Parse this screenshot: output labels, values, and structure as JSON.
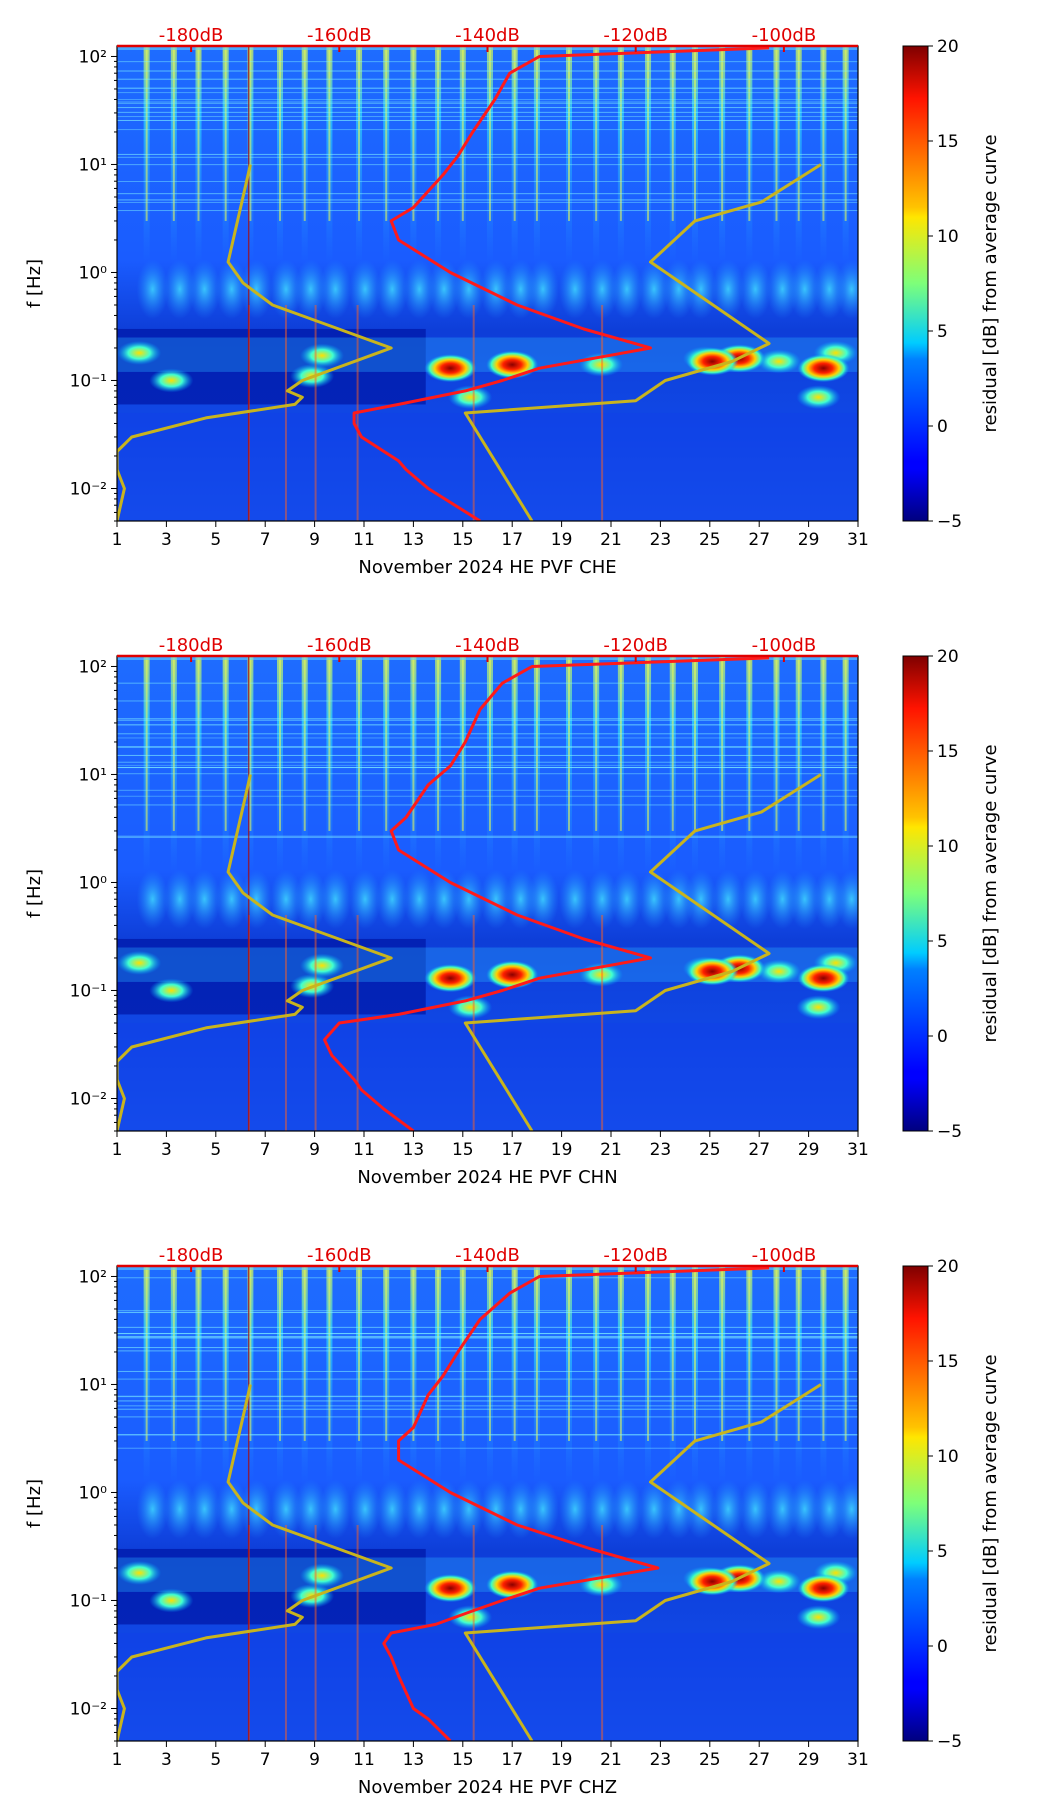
{
  "figure": {
    "type": "spectrogram",
    "colors": {
      "reference_curve": "#ff1a1a",
      "noise_model_curve": "#c8b41e",
      "top_axis_labels": "#e00000"
    }
  },
  "chart_data": [
    {
      "type": "heatmap",
      "title": "",
      "xlabel": "November 2024 HE PVF  CHE",
      "ylabel": "f [Hz]",
      "colorbar_label": "residual [dB] from average curve",
      "xlim": [
        1,
        31
      ],
      "ylim_hz": [
        0.005,
        125
      ],
      "y_scale": "log",
      "x_ticks": [
        1,
        3,
        5,
        7,
        9,
        11,
        13,
        15,
        17,
        19,
        21,
        23,
        25,
        27,
        29,
        31
      ],
      "y_ticks": [
        0.01,
        0.1,
        1,
        10,
        100
      ],
      "y_tick_labels": [
        "10⁻²",
        "10⁻¹",
        "10⁰",
        "10¹",
        "10²"
      ],
      "top_axis_db_ticks": [
        -180,
        -160,
        -140,
        -120,
        -100
      ],
      "top_axis_labels": [
        "-180dB",
        "-160dB",
        "-140dB",
        "-120dB",
        "-100dB"
      ],
      "colorbar_ticks": [
        -5,
        0,
        5,
        10,
        15,
        20
      ],
      "colorbar_tick_labels": [
        "−5",
        "0",
        "5",
        "10",
        "15",
        "20"
      ],
      "color_scale": "jet",
      "series": [
        {
          "name": "average PSD curve",
          "color": "red",
          "points": [
            [
              -141,
              0.005
            ],
            [
              -148,
              0.01
            ],
            [
              -151,
              0.015
            ],
            [
              -152,
              0.018
            ],
            [
              -157,
              0.03
            ],
            [
              -158,
              0.04
            ],
            [
              -158,
              0.05
            ],
            [
              -152,
              0.06
            ],
            [
              -143,
              0.08
            ],
            [
              -138,
              0.1
            ],
            [
              -133,
              0.13
            ],
            [
              -118,
              0.2
            ],
            [
              -127,
              0.3
            ],
            [
              -136,
              0.5
            ],
            [
              -145,
              1
            ],
            [
              -152,
              2
            ],
            [
              -153,
              3
            ],
            [
              -150,
              4
            ],
            [
              -146,
              8
            ],
            [
              -144,
              12
            ],
            [
              -142,
              20
            ],
            [
              -139,
              40
            ],
            [
              -137,
              70
            ],
            [
              -133,
              100
            ],
            [
              -102,
              120
            ]
          ]
        },
        {
          "name": "low noise model",
          "color": "gold",
          "points": [
            [
              -190,
              0.005
            ],
            [
              -189,
              0.01
            ],
            [
              -190,
              0.015
            ],
            [
              -190,
              0.022
            ],
            [
              -188,
              0.03
            ],
            [
              -178,
              0.045
            ],
            [
              -166,
              0.06
            ],
            [
              -165,
              0.07
            ],
            [
              -167,
              0.08
            ],
            [
              -165,
              0.1
            ],
            [
              -153,
              0.2
            ],
            [
              -169,
              0.5
            ],
            [
              -173,
              0.8
            ],
            [
              -175,
              1.25
            ],
            [
              -173,
              5
            ],
            [
              -172,
              10
            ]
          ]
        },
        {
          "name": "high noise model",
          "color": "gold",
          "points": [
            [
              -134,
              0.005
            ],
            [
              -143,
              0.05
            ],
            [
              -120,
              0.065
            ],
            [
              -116,
              0.1
            ],
            [
              -107,
              0.15
            ],
            [
              -102,
              0.22
            ],
            [
              -118,
              1.25
            ],
            [
              -112,
              3
            ],
            [
              -103,
              4.5
            ],
            [
              -95,
              10
            ]
          ]
        }
      ]
    },
    {
      "type": "heatmap",
      "title": "",
      "xlabel": "November 2024 HE PVF  CHN",
      "ylabel": "f [Hz]",
      "colorbar_label": "residual [dB] from average curve",
      "xlim": [
        1,
        31
      ],
      "ylim_hz": [
        0.005,
        125
      ],
      "y_scale": "log",
      "x_ticks": [
        1,
        3,
        5,
        7,
        9,
        11,
        13,
        15,
        17,
        19,
        21,
        23,
        25,
        27,
        29,
        31
      ],
      "y_ticks": [
        0.01,
        0.1,
        1,
        10,
        100
      ],
      "y_tick_labels": [
        "10⁻²",
        "10⁻¹",
        "10⁰",
        "10¹",
        "10²"
      ],
      "top_axis_db_ticks": [
        -180,
        -160,
        -140,
        -120,
        -100
      ],
      "top_axis_labels": [
        "-180dB",
        "-160dB",
        "-140dB",
        "-120dB",
        "-100dB"
      ],
      "colorbar_ticks": [
        -5,
        0,
        5,
        10,
        15,
        20
      ],
      "colorbar_tick_labels": [
        "−5",
        "0",
        "5",
        "10",
        "15",
        "20"
      ],
      "color_scale": "jet",
      "series": [
        {
          "name": "average PSD curve",
          "color": "red",
          "points": [
            [
              -150,
              0.005
            ],
            [
              -154,
              0.008
            ],
            [
              -157,
              0.012
            ],
            [
              -158,
              0.015
            ],
            [
              -161,
              0.025
            ],
            [
              -162,
              0.035
            ],
            [
              -160,
              0.05
            ],
            [
              -152,
              0.06
            ],
            [
              -143,
              0.08
            ],
            [
              -138,
              0.1
            ],
            [
              -133,
              0.13
            ],
            [
              -118,
              0.2
            ],
            [
              -127,
              0.3
            ],
            [
              -136,
              0.5
            ],
            [
              -145,
              1
            ],
            [
              -152,
              2
            ],
            [
              -153,
              3
            ],
            [
              -151,
              4
            ],
            [
              -148,
              8
            ],
            [
              -145,
              12
            ],
            [
              -143,
              20
            ],
            [
              -141,
              40
            ],
            [
              -138,
              70
            ],
            [
              -134,
              100
            ],
            [
              -102,
              120
            ]
          ]
        },
        {
          "name": "low noise model",
          "color": "gold",
          "points": [
            [
              -190,
              0.005
            ],
            [
              -189,
              0.01
            ],
            [
              -190,
              0.015
            ],
            [
              -190,
              0.022
            ],
            [
              -188,
              0.03
            ],
            [
              -178,
              0.045
            ],
            [
              -166,
              0.06
            ],
            [
              -165,
              0.07
            ],
            [
              -167,
              0.08
            ],
            [
              -165,
              0.1
            ],
            [
              -153,
              0.2
            ],
            [
              -169,
              0.5
            ],
            [
              -173,
              0.8
            ],
            [
              -175,
              1.25
            ],
            [
              -173,
              5
            ],
            [
              -172,
              10
            ]
          ]
        },
        {
          "name": "high noise model",
          "color": "gold",
          "points": [
            [
              -134,
              0.005
            ],
            [
              -143,
              0.05
            ],
            [
              -120,
              0.065
            ],
            [
              -116,
              0.1
            ],
            [
              -107,
              0.15
            ],
            [
              -102,
              0.22
            ],
            [
              -118,
              1.25
            ],
            [
              -112,
              3
            ],
            [
              -103,
              4.5
            ],
            [
              -95,
              10
            ]
          ]
        }
      ]
    },
    {
      "type": "heatmap",
      "title": "",
      "xlabel": "November 2024 HE PVF  CHZ",
      "ylabel": "f [Hz]",
      "colorbar_label": "residual [dB] from average curve",
      "xlim": [
        1,
        31
      ],
      "ylim_hz": [
        0.005,
        125
      ],
      "y_scale": "log",
      "x_ticks": [
        1,
        3,
        5,
        7,
        9,
        11,
        13,
        15,
        17,
        19,
        21,
        23,
        25,
        27,
        29,
        31
      ],
      "y_ticks": [
        0.01,
        0.1,
        1,
        10,
        100
      ],
      "y_tick_labels": [
        "10⁻²",
        "10⁻¹",
        "10⁰",
        "10¹",
        "10²"
      ],
      "top_axis_db_ticks": [
        -180,
        -160,
        -140,
        -120,
        -100
      ],
      "top_axis_labels": [
        "-180dB",
        "-160dB",
        "-140dB",
        "-120dB",
        "-100dB"
      ],
      "colorbar_ticks": [
        -5,
        0,
        5,
        10,
        15,
        20
      ],
      "colorbar_tick_labels": [
        "−5",
        "0",
        "5",
        "10",
        "15",
        "20"
      ],
      "color_scale": "jet",
      "series": [
        {
          "name": "average PSD curve",
          "color": "red",
          "points": [
            [
              -145,
              0.005
            ],
            [
              -148,
              0.008
            ],
            [
              -150,
              0.01
            ],
            [
              -152,
              0.02
            ],
            [
              -153,
              0.03
            ],
            [
              -154,
              0.04
            ],
            [
              -153,
              0.05
            ],
            [
              -147,
              0.06
            ],
            [
              -142,
              0.08
            ],
            [
              -138,
              0.1
            ],
            [
              -133,
              0.13
            ],
            [
              -117,
              0.2
            ],
            [
              -126,
              0.3
            ],
            [
              -136,
              0.5
            ],
            [
              -145,
              1
            ],
            [
              -152,
              2
            ],
            [
              -152,
              3
            ],
            [
              -150,
              4
            ],
            [
              -148,
              8
            ],
            [
              -146,
              12
            ],
            [
              -144,
              20
            ],
            [
              -141,
              40
            ],
            [
              -137,
              70
            ],
            [
              -133,
              100
            ],
            [
              -102,
              120
            ]
          ]
        },
        {
          "name": "low noise model",
          "color": "gold",
          "points": [
            [
              -190,
              0.005
            ],
            [
              -189,
              0.01
            ],
            [
              -190,
              0.015
            ],
            [
              -190,
              0.022
            ],
            [
              -188,
              0.03
            ],
            [
              -178,
              0.045
            ],
            [
              -166,
              0.06
            ],
            [
              -165,
              0.07
            ],
            [
              -167,
              0.08
            ],
            [
              -165,
              0.1
            ],
            [
              -153,
              0.2
            ],
            [
              -169,
              0.5
            ],
            [
              -173,
              0.8
            ],
            [
              -175,
              1.25
            ],
            [
              -173,
              5
            ],
            [
              -172,
              10
            ]
          ]
        },
        {
          "name": "high noise model",
          "color": "gold",
          "points": [
            [
              -134,
              0.005
            ],
            [
              -143,
              0.05
            ],
            [
              -120,
              0.065
            ],
            [
              -116,
              0.1
            ],
            [
              -107,
              0.15
            ],
            [
              -102,
              0.22
            ],
            [
              -118,
              1.25
            ],
            [
              -112,
              3
            ],
            [
              -103,
              4.5
            ],
            [
              -95,
              10
            ]
          ]
        }
      ]
    }
  ]
}
